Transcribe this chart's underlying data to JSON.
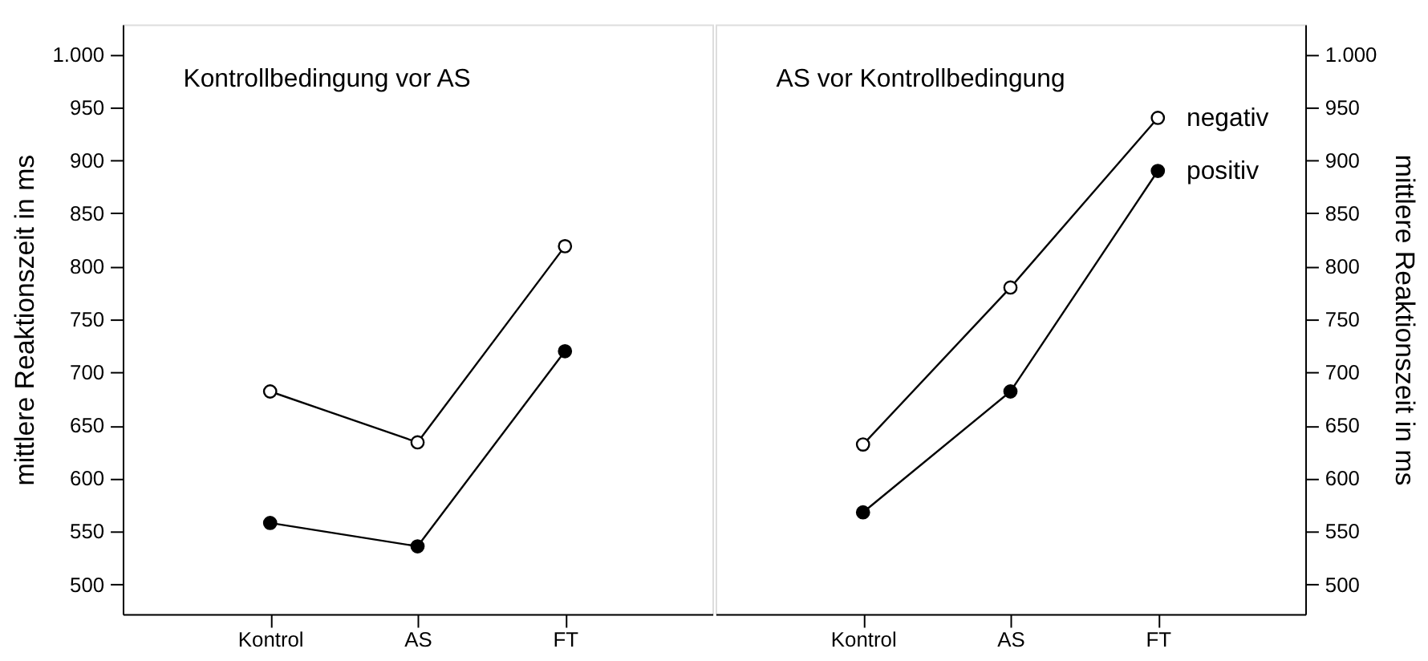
{
  "chart_data": [
    {
      "type": "line",
      "title": "Kontrollbedingung vor AS",
      "ylabel": "mittlere Reaktionszeit in ms",
      "categories": [
        "Kontrol",
        "AS",
        "FT"
      ],
      "marker": "circle",
      "grid": false,
      "ylim": [
        472,
        1028
      ],
      "yticks": [
        500,
        550,
        600,
        650,
        700,
        750,
        800,
        850,
        900,
        950,
        {
          "value": 1000,
          "label": "1.000"
        }
      ],
      "series": [
        {
          "color": "#000000",
          "values": [
            682,
            634,
            819
          ]
        },
        {
          "color": "#000000",
          "values": [
            558,
            536,
            720
          ]
        }
      ]
    },
    {
      "type": "line",
      "title": "AS vor Kontrollbedingung",
      "y2label": "mittlere Reaktionszeit in ms",
      "categories": [
        "Kontrol",
        "AS",
        "FT"
      ],
      "marker": "circle",
      "grid": false,
      "y2lim": [
        472,
        1028
      ],
      "y2ticks": [
        500,
        550,
        600,
        650,
        700,
        750,
        800,
        850,
        900,
        950,
        {
          "value": 1000,
          "label": "1.000"
        }
      ],
      "series": [
        {
          "name": "negativ",
          "color": "#000000",
          "axis": "y2",
          "values": [
            632,
            780,
            940
          ]
        },
        {
          "name": "positiv",
          "color": "#000000",
          "axis": "y2",
          "values": [
            568,
            682,
            890
          ]
        }
      ]
    }
  ]
}
